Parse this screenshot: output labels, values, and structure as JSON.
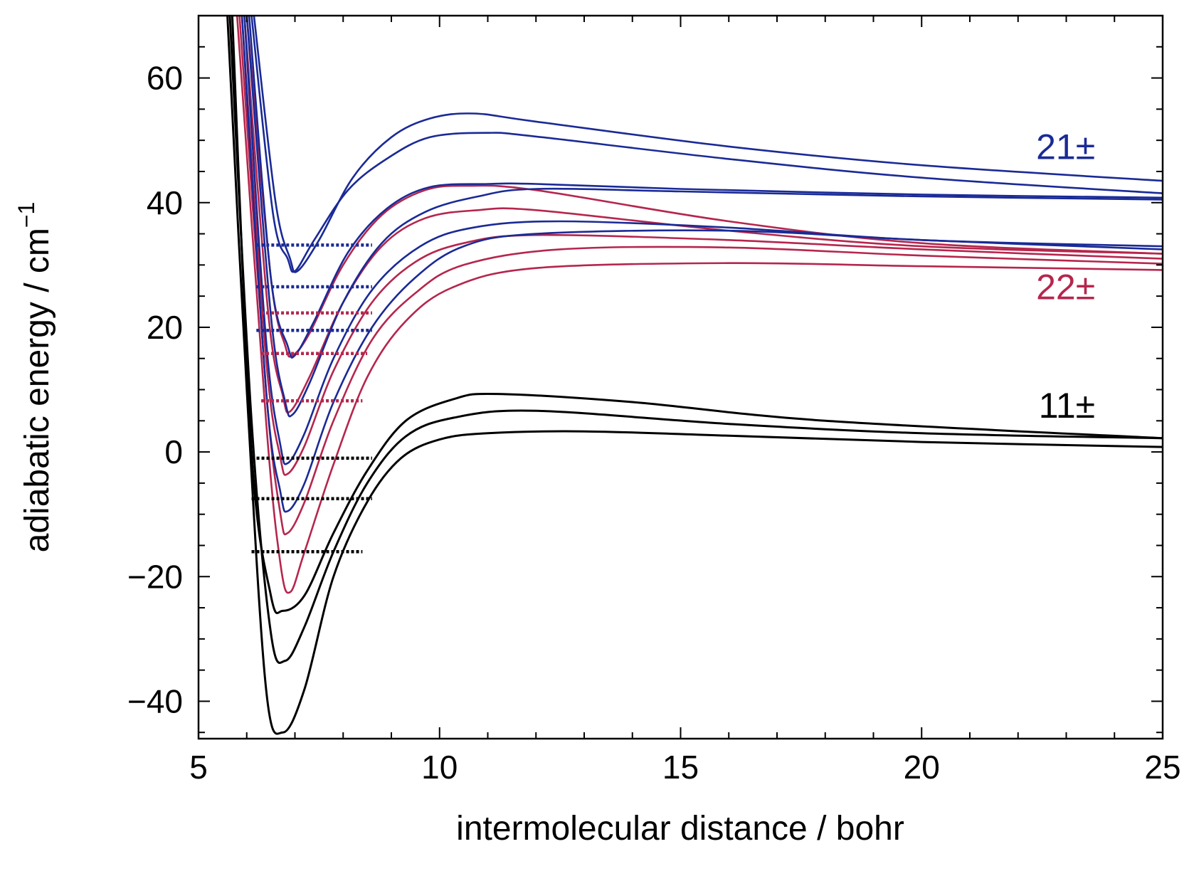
{
  "chart_data": {
    "type": "line",
    "title": "",
    "xlabel": "intermolecular distance / bohr",
    "ylabel": "adiabatic energy / cm",
    "ylabel_exponent": "−1",
    "xlim": [
      5,
      25
    ],
    "ylim": [
      -46,
      70
    ],
    "grid": false,
    "x_ticks": [
      5,
      10,
      15,
      20,
      25
    ],
    "y_ticks": [
      -40,
      -20,
      0,
      20,
      40,
      60
    ],
    "y_tick_labels": [
      "−40",
      "−20",
      "0",
      "20",
      "40",
      "60"
    ],
    "colors": {
      "black": "#000000",
      "red": "#b5264d",
      "blue": "#1a2a96"
    },
    "group_labels": [
      {
        "text": "21±",
        "color": "blue",
        "x": 23.6,
        "y": 47
      },
      {
        "text": "22±",
        "color": "red",
        "x": 23.6,
        "y": 24.5
      },
      {
        "text": "11±",
        "color": "black",
        "x": 23.6,
        "y": 5.5
      }
    ],
    "series": [
      {
        "color": "black",
        "points": [
          [
            5.6,
            70
          ],
          [
            6,
            10
          ],
          [
            6.4,
            -38
          ],
          [
            6.75,
            -45
          ],
          [
            7.2,
            -38
          ],
          [
            7.8,
            -20
          ],
          [
            8.5,
            -8
          ],
          [
            9.2,
            -1
          ],
          [
            10,
            2
          ],
          [
            11,
            3
          ],
          [
            13,
            3.3
          ],
          [
            16,
            2.6
          ],
          [
            20,
            1.6
          ],
          [
            25,
            0.8
          ]
        ]
      },
      {
        "color": "black",
        "points": [
          [
            5.65,
            70
          ],
          [
            6.1,
            5
          ],
          [
            6.5,
            -29
          ],
          [
            6.8,
            -33.5
          ],
          [
            7.2,
            -28
          ],
          [
            7.8,
            -16
          ],
          [
            8.5,
            -5
          ],
          [
            9.3,
            2.5
          ],
          [
            10.3,
            5.5
          ],
          [
            12,
            6.6
          ],
          [
            16,
            4.5
          ],
          [
            20,
            3
          ],
          [
            25,
            2.2
          ]
        ]
      },
      {
        "color": "black",
        "points": [
          [
            5.7,
            70
          ],
          [
            6.1,
            0
          ],
          [
            6.5,
            -23
          ],
          [
            6.75,
            -25.5
          ],
          [
            7.2,
            -23
          ],
          [
            7.8,
            -13
          ],
          [
            8.5,
            -3
          ],
          [
            9.3,
            5
          ],
          [
            10.3,
            8.5
          ],
          [
            11.2,
            9.3
          ],
          [
            14,
            8
          ],
          [
            18,
            5
          ],
          [
            25,
            2.2
          ]
        ]
      },
      {
        "color": "red",
        "points": [
          [
            5.8,
            70
          ],
          [
            6.4,
            5
          ],
          [
            6.7,
            -18
          ],
          [
            6.9,
            -22.5
          ],
          [
            7.2,
            -16
          ],
          [
            7.8,
            -2
          ],
          [
            8.5,
            12
          ],
          [
            9.3,
            21
          ],
          [
            10.3,
            26.5
          ],
          [
            12,
            29.5
          ],
          [
            16,
            30.3
          ],
          [
            20,
            29.8
          ],
          [
            25,
            29.2
          ]
        ]
      },
      {
        "color": "red",
        "points": [
          [
            5.85,
            70
          ],
          [
            6.4,
            10
          ],
          [
            6.7,
            -10
          ],
          [
            6.85,
            -13
          ],
          [
            7.2,
            -8
          ],
          [
            7.8,
            5
          ],
          [
            8.6,
            18
          ],
          [
            9.5,
            25.5
          ],
          [
            10.5,
            30
          ],
          [
            12.5,
            32.5
          ],
          [
            16,
            32.8
          ],
          [
            20,
            31.5
          ],
          [
            25,
            30.2
          ]
        ]
      },
      {
        "color": "red",
        "points": [
          [
            5.9,
            70
          ],
          [
            6.4,
            15
          ],
          [
            6.7,
            -1
          ],
          [
            6.85,
            -3.5
          ],
          [
            7.2,
            1
          ],
          [
            7.8,
            13
          ],
          [
            8.6,
            24
          ],
          [
            9.5,
            30.5
          ],
          [
            10.5,
            33.5
          ],
          [
            12,
            34.8
          ],
          [
            16,
            34
          ],
          [
            20,
            32.5
          ],
          [
            25,
            31
          ]
        ]
      },
      {
        "color": "red",
        "points": [
          [
            5.95,
            70
          ],
          [
            6.45,
            22
          ],
          [
            6.75,
            9
          ],
          [
            6.9,
            6.5
          ],
          [
            7.3,
            12
          ],
          [
            8,
            24
          ],
          [
            8.8,
            33
          ],
          [
            9.7,
            37.5
          ],
          [
            10.8,
            38.8
          ],
          [
            12,
            38.8
          ],
          [
            16,
            35.5
          ],
          [
            20,
            33
          ],
          [
            25,
            31.8
          ]
        ]
      },
      {
        "color": "red",
        "points": [
          [
            6,
            70
          ],
          [
            6.5,
            28
          ],
          [
            6.8,
            17
          ],
          [
            6.95,
            15.5
          ],
          [
            7.3,
            19
          ],
          [
            8,
            30
          ],
          [
            8.8,
            38
          ],
          [
            9.7,
            42
          ],
          [
            10.6,
            42.7
          ],
          [
            12,
            42
          ],
          [
            16,
            37
          ],
          [
            20,
            33.5
          ],
          [
            25,
            31.8
          ]
        ]
      },
      {
        "color": "blue",
        "points": [
          [
            5.9,
            70
          ],
          [
            6.4,
            10
          ],
          [
            6.7,
            -6.5
          ],
          [
            6.85,
            -9.5
          ],
          [
            7.2,
            -5
          ],
          [
            7.8,
            8
          ],
          [
            8.6,
            20
          ],
          [
            9.5,
            28
          ],
          [
            10.5,
            33
          ],
          [
            12,
            35
          ],
          [
            16,
            35.5
          ],
          [
            20,
            34
          ],
          [
            25,
            32.5
          ]
        ]
      },
      {
        "color": "blue",
        "points": [
          [
            5.95,
            70
          ],
          [
            6.4,
            18
          ],
          [
            6.7,
            1
          ],
          [
            6.85,
            -1.8
          ],
          [
            7.2,
            3
          ],
          [
            7.8,
            15
          ],
          [
            8.6,
            26
          ],
          [
            9.6,
            33
          ],
          [
            10.7,
            36
          ],
          [
            12.5,
            37
          ],
          [
            16,
            36
          ],
          [
            20,
            34
          ],
          [
            25,
            33
          ]
        ]
      },
      {
        "color": "blue",
        "points": [
          [
            6,
            70
          ],
          [
            6.5,
            22
          ],
          [
            6.8,
            8
          ],
          [
            6.95,
            6
          ],
          [
            7.3,
            11
          ],
          [
            8,
            24
          ],
          [
            8.8,
            33.5
          ],
          [
            9.7,
            38.5
          ],
          [
            10.8,
            41
          ],
          [
            12,
            42.2
          ],
          [
            15,
            41.8
          ],
          [
            20,
            41
          ],
          [
            25,
            40.5
          ]
        ]
      },
      {
        "color": "blue",
        "points": [
          [
            6.05,
            70
          ],
          [
            6.5,
            28
          ],
          [
            6.85,
            17
          ],
          [
            7,
            15.5
          ],
          [
            7.4,
            21
          ],
          [
            8.1,
            32
          ],
          [
            8.9,
            39
          ],
          [
            9.8,
            42.5
          ],
          [
            11,
            43
          ],
          [
            12,
            43
          ],
          [
            15,
            42.2
          ],
          [
            20,
            41.3
          ],
          [
            25,
            40.8
          ]
        ]
      },
      {
        "color": "blue",
        "points": [
          [
            6.1,
            70
          ],
          [
            6.55,
            38
          ],
          [
            6.85,
            31
          ],
          [
            7,
            29
          ],
          [
            7.4,
            34
          ],
          [
            8.1,
            42
          ],
          [
            8.9,
            47
          ],
          [
            9.8,
            50.5
          ],
          [
            11,
            51.2
          ],
          [
            12,
            50.6
          ],
          [
            16,
            47
          ],
          [
            20,
            44
          ],
          [
            25,
            41.5
          ]
        ]
      },
      {
        "color": "blue",
        "points": [
          [
            6.15,
            70
          ],
          [
            6.6,
            40
          ],
          [
            6.9,
            31
          ],
          [
            7.05,
            29
          ],
          [
            7.5,
            34
          ],
          [
            8.2,
            44
          ],
          [
            9,
            50.5
          ],
          [
            9.8,
            53.5
          ],
          [
            10.7,
            54.3
          ],
          [
            12,
            53
          ],
          [
            16,
            49
          ],
          [
            20,
            46
          ],
          [
            25,
            43.5
          ]
        ]
      }
    ],
    "levels": [
      {
        "color": "black",
        "y": -16,
        "x0": 6.1,
        "x1": 8.4
      },
      {
        "color": "black",
        "y": -7.5,
        "x0": 6.1,
        "x1": 8.6
      },
      {
        "color": "black",
        "y": -1,
        "x0": 6.1,
        "x1": 8.6
      },
      {
        "color": "red",
        "y": 8.2,
        "x0": 6.3,
        "x1": 8.4
      },
      {
        "color": "red",
        "y": 15.8,
        "x0": 6.3,
        "x1": 8.5
      },
      {
        "color": "red",
        "y": 22.3,
        "x0": 6.3,
        "x1": 8.6
      },
      {
        "color": "blue",
        "y": 19.5,
        "x0": 6.2,
        "x1": 8.6
      },
      {
        "color": "blue",
        "y": 26.5,
        "x0": 6.2,
        "x1": 8.6
      },
      {
        "color": "blue",
        "y": 33.2,
        "x0": 6.2,
        "x1": 8.6
      }
    ]
  }
}
